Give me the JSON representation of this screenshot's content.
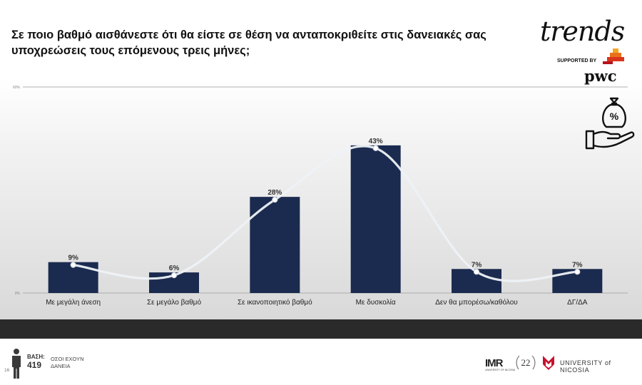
{
  "title": "Σε ποιο βαθμό αισθάνεστε ότι θα είστε σε θέση να ανταποκριθείτε στις δανειακές σας υποχρεώσεις τους επόμενους τρεις μήνες;",
  "brand": {
    "logo": "trends",
    "supported_by": "SUPPORTED BY",
    "sponsor": "pwc"
  },
  "colors": {
    "bar": "#1b2b4f",
    "line": "#eef2f7",
    "footer_bar": "#2a2a2a",
    "unic_red": "#c8102e"
  },
  "icons": {
    "money": "money-bag-hand-icon",
    "person": "person-icon"
  },
  "chart_data": {
    "type": "bar",
    "title": "",
    "categories": [
      "Με μεγάλη άνεση",
      "Σε μεγάλο βαθμό",
      "Σε ικανοποιητικό βαθμό",
      "Με δυσκολία",
      "Δεν θα μπορέσω/καθόλου",
      "ΔΓ/ΔΑ"
    ],
    "values": [
      9,
      6,
      28,
      43,
      7,
      7
    ],
    "data_labels": [
      "9%",
      "6%",
      "28%",
      "43%",
      "7%",
      "7%"
    ],
    "ylim": [
      0,
      60
    ],
    "y_ticks": [
      "0%",
      "60%"
    ],
    "overlay": "smoothed trend line through bar tops",
    "legend": "none",
    "grid": false
  },
  "footer": {
    "base_label": "ΒΑΣΗ:",
    "base_value": "419",
    "base_desc": "ΟΣΟΙ ΕΧΟΥΝ ΔΑΝΕΙΑ",
    "page_number": "16",
    "imr": "IMR",
    "imr_sub": "UNIVERSITY OF NICOSIA",
    "anniversary": "22",
    "university": "UNIVERSITY of NICOSIA"
  }
}
